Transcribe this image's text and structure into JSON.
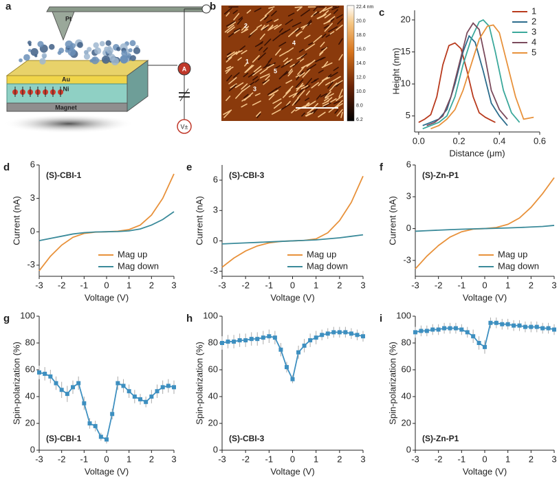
{
  "diagram": {
    "panel": "a",
    "labels": {
      "tip": "Pt",
      "ammeter": "A",
      "source": "V±",
      "top_layer": "Au",
      "middle_layer": "Ni",
      "base": "Magnet"
    }
  },
  "image": {
    "panel": "b",
    "colorbar_ticks": [
      "22.4 nm",
      "20.0",
      "18.0",
      "16.0",
      "14.0",
      "12.0",
      "10.0",
      "8.0",
      "6.2"
    ],
    "markers": [
      "1",
      "2",
      "3",
      "4",
      "5"
    ]
  },
  "chart_data": [
    {
      "type": "line",
      "panel": "c",
      "x_label": "Distance (μm)",
      "y_label": "Height (nm)",
      "xlim": [
        -0.02,
        0.6
      ],
      "ylim": [
        2.5,
        21.5
      ],
      "xticks": [
        {
          "value": 0,
          "label": "0.0"
        },
        {
          "value": 0.2,
          "label": "0.2"
        },
        {
          "value": 0.4,
          "label": "0.4"
        },
        {
          "value": 0.6,
          "label": "0.6"
        }
      ],
      "yticks": [
        5,
        10,
        15,
        20
      ],
      "legend": "upper right",
      "series": [
        {
          "name": "1",
          "color": "#b8391c",
          "x": [
            0,
            0.03,
            0.06,
            0.09,
            0.12,
            0.15,
            0.18,
            0.21,
            0.24,
            0.27,
            0.3,
            0.33,
            0.36,
            0.38
          ],
          "values": [
            4,
            4.5,
            5.2,
            8,
            13,
            16,
            16.4,
            15.5,
            12,
            8,
            5.5,
            4.8,
            4.3,
            4
          ]
        },
        {
          "name": "2",
          "color": "#2b6c8c",
          "x": [
            0.02,
            0.06,
            0.1,
            0.14,
            0.18,
            0.22,
            0.25,
            0.28,
            0.32,
            0.36,
            0.4,
            0.44
          ],
          "values": [
            3.5,
            4,
            4.5,
            6,
            10,
            15,
            17.5,
            16.5,
            12,
            7,
            5,
            3.5
          ]
        },
        {
          "name": "3",
          "color": "#3aa89b",
          "x": [
            0.02,
            0.06,
            0.1,
            0.14,
            0.18,
            0.22,
            0.26,
            0.3,
            0.32,
            0.35,
            0.38,
            0.42,
            0.46,
            0.5
          ],
          "values": [
            3,
            3.5,
            4,
            5,
            8,
            13,
            17,
            19.7,
            20,
            19,
            15,
            9,
            5.5,
            4
          ]
        },
        {
          "name": "4",
          "color": "#7a4a5c",
          "x": [
            0.04,
            0.08,
            0.12,
            0.16,
            0.2,
            0.24,
            0.27,
            0.3,
            0.33,
            0.36,
            0.4,
            0.44
          ],
          "values": [
            3.5,
            4,
            5,
            8,
            13,
            18,
            19.5,
            18.5,
            14,
            9,
            6,
            4.5
          ]
        },
        {
          "name": "5",
          "color": "#e8913a",
          "x": [
            0.06,
            0.1,
            0.14,
            0.18,
            0.22,
            0.26,
            0.3,
            0.34,
            0.37,
            0.4,
            0.44,
            0.48,
            0.52,
            0.57
          ],
          "values": [
            3,
            3.5,
            4.5,
            6,
            9,
            13,
            17,
            19,
            19.2,
            18,
            13,
            8,
            4.5,
            4.8
          ]
        }
      ]
    },
    {
      "type": "line",
      "panel": "d",
      "annotation": "(S)-CBI-1",
      "x_label": "Voltage (V)",
      "y_label": "Current (nA)",
      "xlim": [
        -3,
        3
      ],
      "ylim": [
        -4,
        6
      ],
      "xticks": [
        -3,
        -2,
        -1,
        0,
        1,
        2,
        3
      ],
      "yticks": [
        -3,
        0,
        3,
        6
      ],
      "legend": "lower right",
      "x": [
        -3,
        -2.5,
        -2,
        -1.5,
        -1,
        -0.5,
        0,
        0.5,
        1,
        1.5,
        2,
        2.5,
        3
      ],
      "series": [
        {
          "name": "Mag up",
          "color": "#e8913a",
          "values": [
            -3.5,
            -2.2,
            -1.2,
            -0.5,
            -0.15,
            -0.03,
            0,
            0.05,
            0.2,
            0.6,
            1.5,
            3,
            5.2
          ]
        },
        {
          "name": "Mag down",
          "color": "#3a8a9a",
          "values": [
            -0.8,
            -0.6,
            -0.4,
            -0.2,
            -0.08,
            -0.02,
            0,
            0.02,
            0.08,
            0.25,
            0.6,
            1.1,
            1.8
          ]
        }
      ]
    },
    {
      "type": "line",
      "panel": "e",
      "annotation": "(S)-CBI-3",
      "x_label": "Voltage (V)",
      "y_label": "Current (nA)",
      "xlim": [
        -3,
        3
      ],
      "ylim": [
        -3.5,
        7.5
      ],
      "xticks": [
        -3,
        -2,
        -1,
        0,
        1,
        2,
        3
      ],
      "yticks": [
        -3,
        0,
        3,
        6
      ],
      "legend": "lower right",
      "x": [
        -3,
        -2.5,
        -2,
        -1.5,
        -1,
        -0.5,
        0,
        0.5,
        1,
        1.5,
        2,
        2.5,
        3
      ],
      "series": [
        {
          "name": "Mag up",
          "color": "#e8913a",
          "values": [
            -2.6,
            -1.7,
            -1,
            -0.5,
            -0.2,
            -0.05,
            0,
            0.05,
            0.2,
            0.8,
            2,
            3.8,
            6.4
          ]
        },
        {
          "name": "Mag down",
          "color": "#3a8a9a",
          "values": [
            -0.3,
            -0.25,
            -0.2,
            -0.15,
            -0.1,
            -0.05,
            0,
            0.05,
            0.1,
            0.2,
            0.3,
            0.45,
            0.6
          ]
        }
      ]
    },
    {
      "type": "line",
      "panel": "f",
      "annotation": "(S)-Zn-P1",
      "x_label": "Voltage (V)",
      "y_label": "Current (nA)",
      "xlim": [
        -3,
        3
      ],
      "ylim": [
        -4.5,
        6
      ],
      "xticks": [
        -3,
        -2,
        -1,
        0,
        1,
        2,
        3
      ],
      "yticks": [
        -3,
        0,
        3,
        6
      ],
      "legend": "lower right",
      "x": [
        -3,
        -2.5,
        -2,
        -1.5,
        -1,
        -0.5,
        0,
        0.5,
        1,
        1.5,
        2,
        2.5,
        3
      ],
      "series": [
        {
          "name": "Mag up",
          "color": "#e8913a",
          "values": [
            -3.8,
            -2.6,
            -1.6,
            -0.8,
            -0.3,
            -0.05,
            0,
            0.1,
            0.4,
            1,
            2,
            3.3,
            4.8
          ]
        },
        {
          "name": "Mag down",
          "color": "#3a8a9a",
          "values": [
            -0.25,
            -0.2,
            -0.15,
            -0.1,
            -0.06,
            -0.03,
            0,
            0.03,
            0.06,
            0.1,
            0.15,
            0.2,
            0.3
          ]
        }
      ]
    },
    {
      "type": "line",
      "panel": "g",
      "annotation": "(S)-CBI-1",
      "x_label": "Voltage (V)",
      "y_label": "Spin-polarization (%)",
      "xlim": [
        -3,
        3
      ],
      "ylim": [
        0,
        100
      ],
      "xticks": [
        -3,
        -2,
        -1,
        0,
        1,
        2,
        3
      ],
      "yticks": [
        0,
        20,
        40,
        60,
        80,
        100
      ],
      "x": [
        -3,
        -2.75,
        -2.5,
        -2.25,
        -2,
        -1.75,
        -1.5,
        -1.25,
        -1,
        -0.75,
        -0.5,
        -0.25,
        0,
        0.25,
        0.5,
        0.75,
        1,
        1.25,
        1.5,
        1.75,
        2,
        2.25,
        2.5,
        2.75,
        3
      ],
      "series": [
        {
          "color": "#3d8fc0",
          "marker": "square",
          "values": [
            58,
            57,
            55,
            50,
            45,
            42,
            47,
            50,
            35,
            20,
            18,
            10,
            8,
            27,
            50,
            48,
            44,
            40,
            38,
            36,
            40,
            44,
            47,
            48,
            47
          ],
          "errors": [
            5,
            5,
            5,
            5,
            6,
            6,
            5,
            5,
            5,
            4,
            4,
            3,
            3,
            4,
            5,
            5,
            5,
            5,
            4,
            4,
            5,
            5,
            5,
            5,
            5
          ]
        }
      ]
    },
    {
      "type": "line",
      "panel": "h",
      "annotation": "(S)-CBI-3",
      "x_label": "Voltage (V)",
      "y_label": "Spin-polarization (%)",
      "xlim": [
        -3,
        3
      ],
      "ylim": [
        0,
        100
      ],
      "xticks": [
        -3,
        -2,
        -1,
        0,
        1,
        2,
        3
      ],
      "yticks": [
        0,
        20,
        40,
        60,
        80,
        100
      ],
      "x": [
        -3,
        -2.75,
        -2.5,
        -2.25,
        -2,
        -1.75,
        -1.5,
        -1.25,
        -1,
        -0.75,
        -0.5,
        -0.25,
        0,
        0.25,
        0.5,
        0.75,
        1,
        1.25,
        1.5,
        1.75,
        2,
        2.25,
        2.5,
        2.75,
        3
      ],
      "series": [
        {
          "color": "#3d8fc0",
          "marker": "square",
          "values": [
            80,
            81,
            81,
            82,
            82,
            83,
            83,
            84,
            85,
            84,
            75,
            62,
            53,
            73,
            78,
            82,
            84,
            86,
            87,
            88,
            88,
            88,
            87,
            86,
            85
          ],
          "errors": [
            5,
            5,
            5,
            5,
            5,
            5,
            5,
            5,
            5,
            5,
            5,
            4,
            3,
            5,
            5,
            5,
            5,
            4,
            4,
            4,
            4,
            4,
            4,
            4,
            4
          ]
        }
      ]
    },
    {
      "type": "line",
      "panel": "i",
      "annotation": "(S)-Zn-P1",
      "x_label": "Voltage (V)",
      "y_label": "Spin-polarization (%)",
      "xlim": [
        -3,
        3
      ],
      "ylim": [
        0,
        100
      ],
      "xticks": [
        -3,
        -2,
        -1,
        0,
        1,
        2,
        3
      ],
      "yticks": [
        0,
        20,
        40,
        60,
        80,
        100
      ],
      "x": [
        -3,
        -2.75,
        -2.5,
        -2.25,
        -2,
        -1.75,
        -1.5,
        -1.25,
        -1,
        -0.75,
        -0.5,
        -0.25,
        0,
        0.25,
        0.5,
        0.75,
        1,
        1.25,
        1.5,
        1.75,
        2,
        2.25,
        2.5,
        2.75,
        3
      ],
      "series": [
        {
          "color": "#3d8fc0",
          "marker": "square",
          "values": [
            88,
            89,
            89,
            90,
            90,
            91,
            91,
            91,
            90,
            88,
            85,
            80,
            77,
            95,
            95,
            94,
            94,
            93,
            93,
            92,
            92,
            92,
            91,
            91,
            90
          ],
          "errors": [
            4,
            4,
            4,
            4,
            4,
            4,
            4,
            4,
            4,
            4,
            5,
            5,
            5,
            4,
            4,
            4,
            4,
            4,
            4,
            4,
            4,
            4,
            4,
            4,
            4
          ]
        }
      ]
    }
  ]
}
